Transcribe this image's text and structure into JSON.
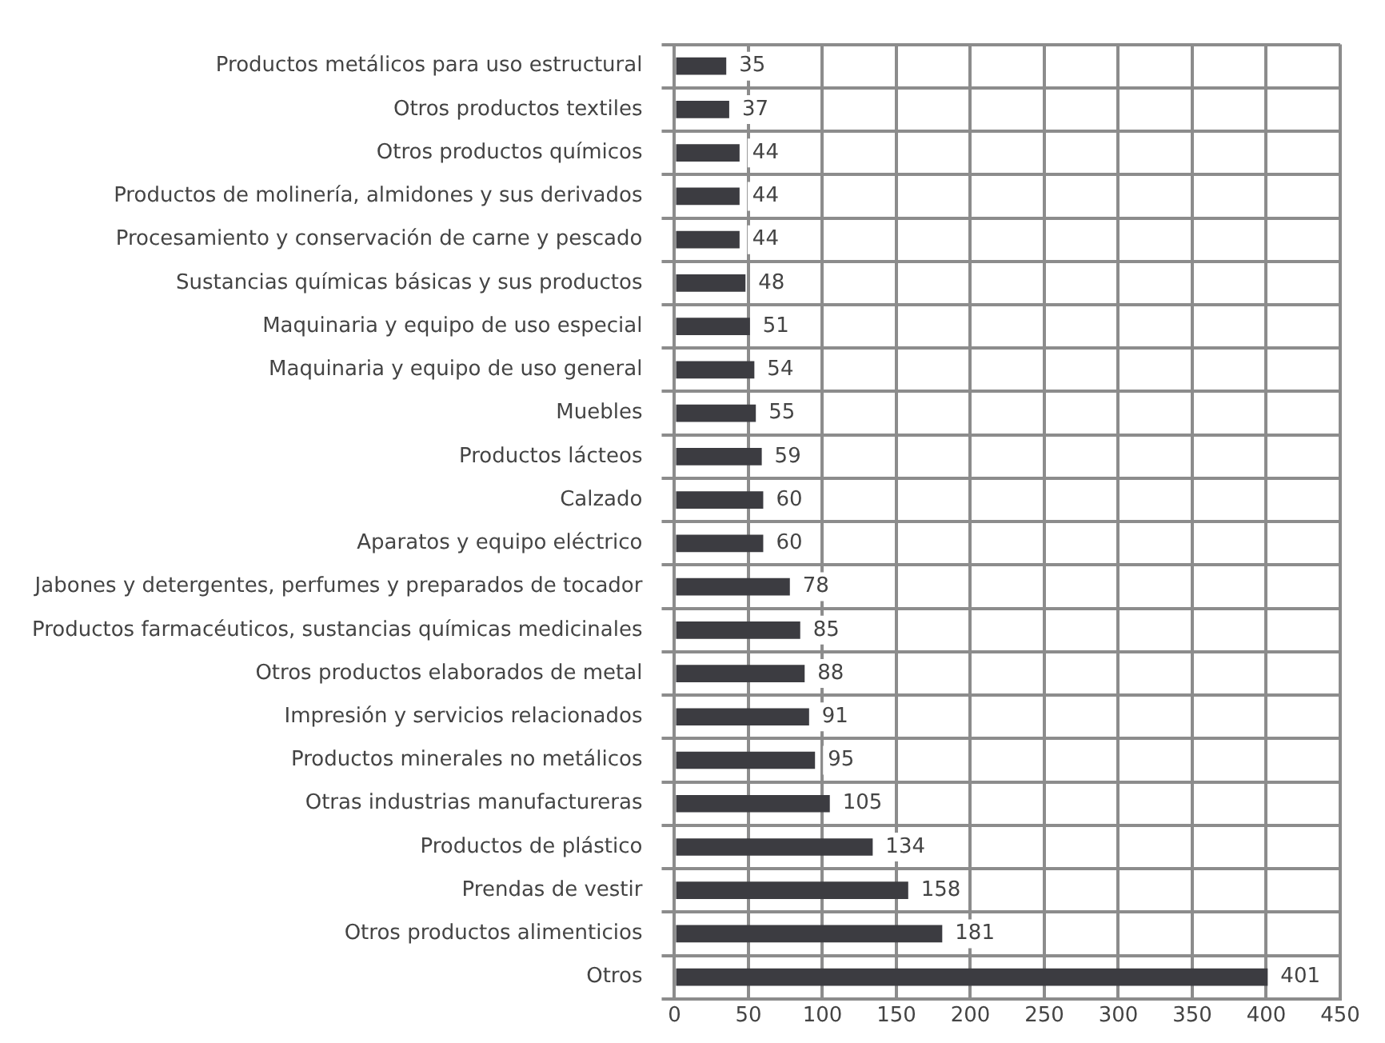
{
  "chart_data": {
    "type": "bar",
    "orientation": "horizontal",
    "categories": [
      "Productos metálicos para uso estructural",
      "Otros productos textiles",
      "Otros productos químicos",
      "Productos de molinería, almidones y sus derivados",
      "Procesamiento y conservación de carne y pescado",
      "Sustancias químicas básicas y sus productos",
      "Maquinaria y equipo de uso especial",
      "Maquinaria y equipo de uso general",
      "Muebles",
      "Productos lácteos",
      "Calzado",
      "Aparatos y equipo eléctrico",
      "Jabones y detergentes, perfumes y preparados de tocador",
      "Productos farmacéuticos, sustancias químicas medicinales",
      "Otros productos elaborados de metal",
      "Impresión y servicios relacionados",
      "Productos minerales no metálicos",
      "Otras industrias manufactureras",
      "Productos de plástico",
      "Prendas de vestir",
      "Otros productos alimenticios",
      "Otros"
    ],
    "values": [
      35,
      37,
      44,
      44,
      44,
      48,
      51,
      54,
      55,
      59,
      60,
      60,
      78,
      85,
      88,
      91,
      95,
      105,
      134,
      158,
      181,
      401
    ],
    "color": "#3c3c41",
    "xlim": [
      0,
      450
    ],
    "xticks": [
      0,
      50,
      100,
      150,
      200,
      250,
      300,
      350,
      400,
      450
    ],
    "grid": true,
    "data_labels": true,
    "legend": false
  }
}
